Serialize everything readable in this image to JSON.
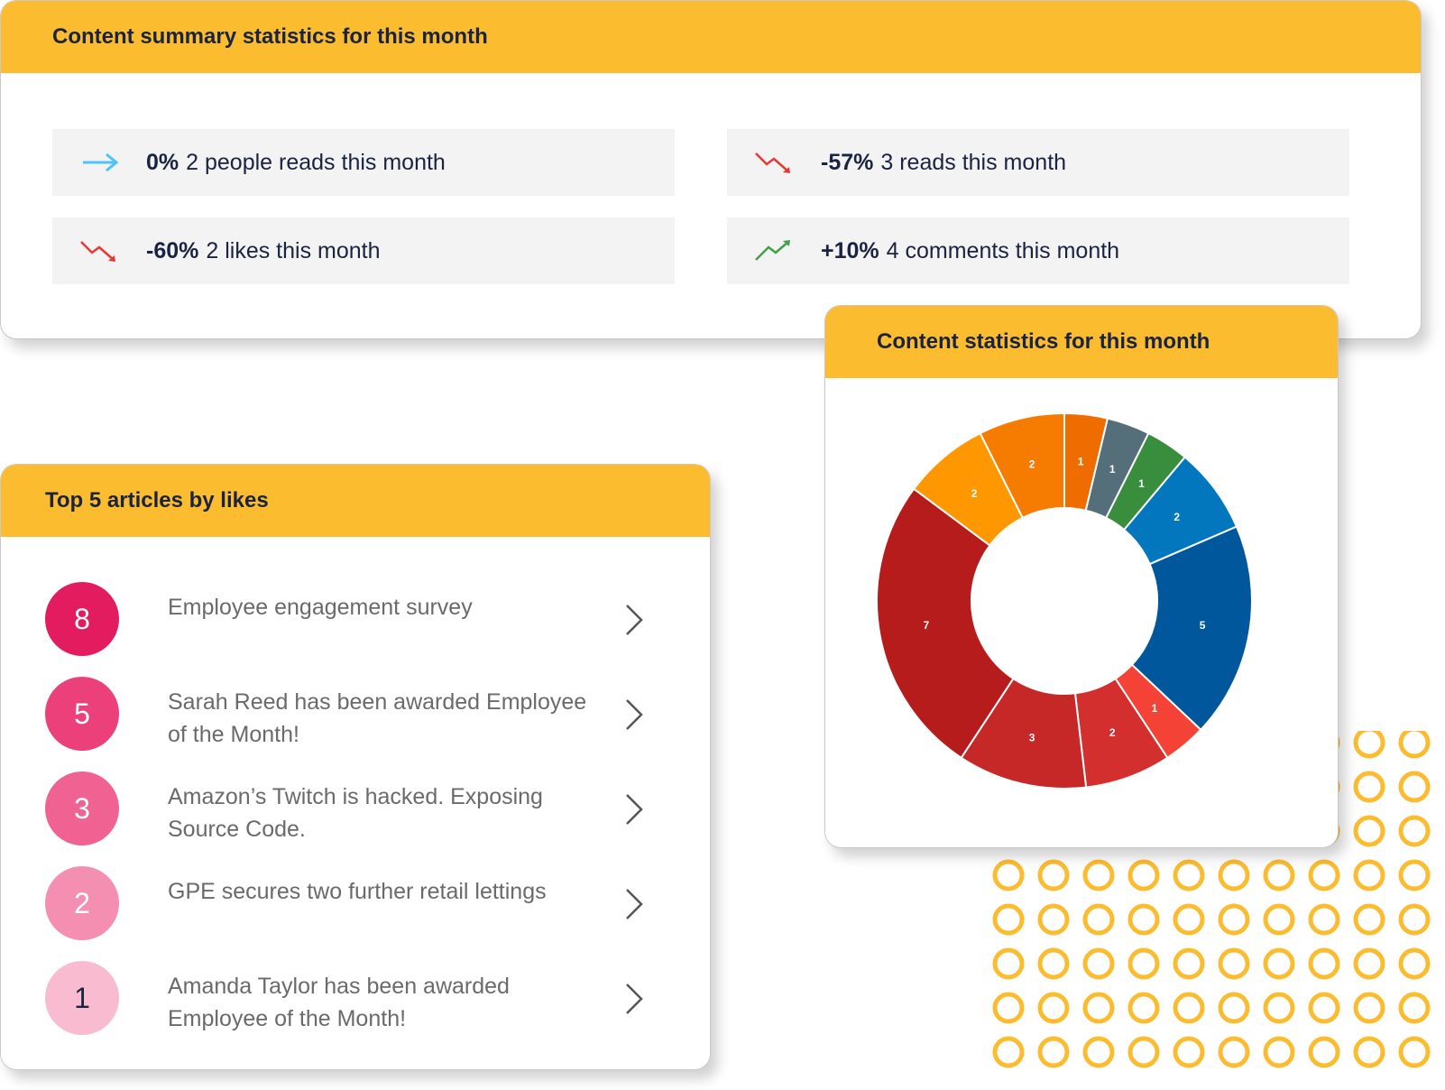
{
  "summary": {
    "title": "Content summary statistics for this month",
    "stats": [
      {
        "pct": "0%",
        "text": "2 people reads this month",
        "trend": "flat",
        "icon": "arrow-right-icon",
        "color": "#4fc3f7"
      },
      {
        "pct": "-57%",
        "text": "3 reads this month",
        "trend": "down",
        "icon": "trend-down-icon",
        "color": "#e53935"
      },
      {
        "pct": "-60%",
        "text": "2 likes this month",
        "trend": "down",
        "icon": "trend-down-icon",
        "color": "#e53935"
      },
      {
        "pct": "+10%",
        "text": "4 comments this month",
        "trend": "up",
        "icon": "trend-up-icon",
        "color": "#43a047"
      }
    ]
  },
  "articles": {
    "title": "Top 5 articles by likes",
    "items": [
      {
        "rank": "8",
        "title": "Employee engagement survey",
        "badge_color": "#e31c5f",
        "text_color": "#ffffff"
      },
      {
        "rank": "5",
        "title": "Sarah Reed has been awarded Employee of the Month!",
        "badge_color": "#ec407a",
        "text_color": "#ffffff"
      },
      {
        "rank": "3",
        "title": "Amazon’s Twitch is hacked. Exposing Source Code.",
        "badge_color": "#f06292",
        "text_color": "#ffffff"
      },
      {
        "rank": "2",
        "title": "GPE secures two further retail lettings",
        "badge_color": "#f48fb1",
        "text_color": "#ffffff"
      },
      {
        "rank": "1",
        "title": "Amanda Taylor has been awarded Employee of the Month!",
        "badge_color": "#f8bbd0",
        "text_color": "#1a2340"
      }
    ]
  },
  "chart": {
    "title": "Content statistics for this month"
  },
  "chart_data": {
    "type": "pie",
    "title": "Content statistics for this month",
    "donut": true,
    "categories": [
      "",
      "",
      "",
      "",
      "",
      "",
      "",
      "",
      "",
      "",
      ""
    ],
    "values": [
      1,
      1,
      1,
      2,
      5,
      1,
      2,
      3,
      7,
      2,
      2
    ],
    "colors": [
      "#ee6c00",
      "#546e7a",
      "#388e3c",
      "#0277bd",
      "#01579b",
      "#f44336",
      "#d32f2f",
      "#c62828",
      "#b71c1c",
      "#ff9800",
      "#f57c00"
    ]
  },
  "colors": {
    "header": "#fbbc30",
    "text_dark": "#1a2340",
    "text_muted": "#6a6a6a",
    "stat_bg": "#f3f3f3",
    "dots": "#fbbc30"
  }
}
